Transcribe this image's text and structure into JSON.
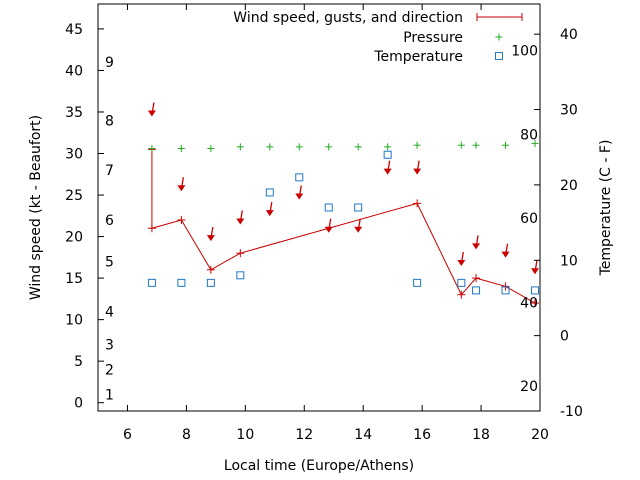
{
  "chart_data": {
    "type": "line",
    "xlabel": "Local time (Europe/Athens)",
    "ylabel": "Wind speed (kt - Beaufort)",
    "y2label": "Temperature (C - F)",
    "xlim": [
      5,
      20
    ],
    "ylim": [
      -1,
      48
    ],
    "y2lim": [
      -10,
      44
    ],
    "x_ticks": [
      6,
      8,
      10,
      12,
      14,
      16,
      18,
      20
    ],
    "y_ticks": [
      0,
      5,
      10,
      15,
      20,
      25,
      30,
      35,
      40,
      45
    ],
    "y2_ticks": [
      -10,
      0,
      10,
      20,
      30,
      40
    ],
    "beaufort_labels": [
      {
        "value": "1",
        "y": 1
      },
      {
        "value": "2",
        "y": 4
      },
      {
        "value": "3",
        "y": 7
      },
      {
        "value": "4",
        "y": 11
      },
      {
        "value": "5",
        "y": 17
      },
      {
        "value": "6",
        "y": 22
      },
      {
        "value": "7",
        "y": 28
      },
      {
        "value": "8",
        "y": 34
      },
      {
        "value": "9",
        "y": 41
      }
    ],
    "fahrenheit_labels": [
      {
        "value": "20",
        "y2": -6.7
      },
      {
        "value": "40",
        "y2": 4.4
      },
      {
        "value": "60",
        "y2": 15.6
      },
      {
        "value": "80",
        "y2": 26.7
      },
      {
        "value": "100",
        "y2": 37.8
      }
    ],
    "legend": [
      "Wind speed, gusts, and direction",
      "Pressure",
      "Temperature"
    ],
    "legend_position": "top-right",
    "grid": false,
    "colors": {
      "wind": "#cc0000",
      "pressure": "#22aa22",
      "temperature": "#1f77c8"
    },
    "series": [
      {
        "name": "Wind speed, gusts, and direction",
        "x": [
          6.83,
          7.83,
          8.83,
          9.83,
          15.83,
          17.33,
          17.83,
          18.83,
          19.83
        ],
        "values": [
          21,
          22,
          16,
          18,
          24,
          13,
          15,
          14,
          12
        ],
        "gust_ranges": [
          {
            "x": 6.83,
            "low": 21,
            "high": 30.5
          }
        ],
        "direction_arrows": [
          {
            "x": 6.83,
            "y": 34.7
          },
          {
            "x": 7.83,
            "y": 25.7
          },
          {
            "x": 8.83,
            "y": 19.7
          },
          {
            "x": 9.83,
            "y": 21.7
          },
          {
            "x": 10.83,
            "y": 22.7
          },
          {
            "x": 11.83,
            "y": 24.7
          },
          {
            "x": 12.83,
            "y": 20.7
          },
          {
            "x": 13.83,
            "y": 20.7
          },
          {
            "x": 14.83,
            "y": 27.7
          },
          {
            "x": 15.83,
            "y": 27.7
          },
          {
            "x": 17.33,
            "y": 16.7
          },
          {
            "x": 17.83,
            "y": 18.7
          },
          {
            "x": 18.83,
            "y": 17.7
          },
          {
            "x": 19.83,
            "y": 15.7
          }
        ]
      },
      {
        "name": "Pressure",
        "x": [
          6.83,
          7.83,
          8.83,
          9.83,
          10.83,
          11.83,
          12.83,
          13.83,
          14.83,
          15.83,
          17.33,
          17.83,
          18.83,
          19.83
        ],
        "values": [
          30.6,
          30.6,
          30.6,
          30.8,
          30.8,
          30.8,
          30.8,
          30.8,
          30.8,
          31.0,
          31.0,
          31.0,
          31.0,
          31.2
        ]
      },
      {
        "name": "Temperature",
        "x": [
          6.83,
          7.83,
          8.83,
          9.83,
          10.83,
          11.83,
          12.83,
          13.83,
          14.83,
          15.83,
          17.33,
          17.83,
          18.83,
          19.83
        ],
        "values": [
          7,
          7,
          7,
          8,
          19,
          21,
          17,
          17,
          24,
          7,
          7,
          6,
          6,
          6
        ]
      }
    ]
  }
}
